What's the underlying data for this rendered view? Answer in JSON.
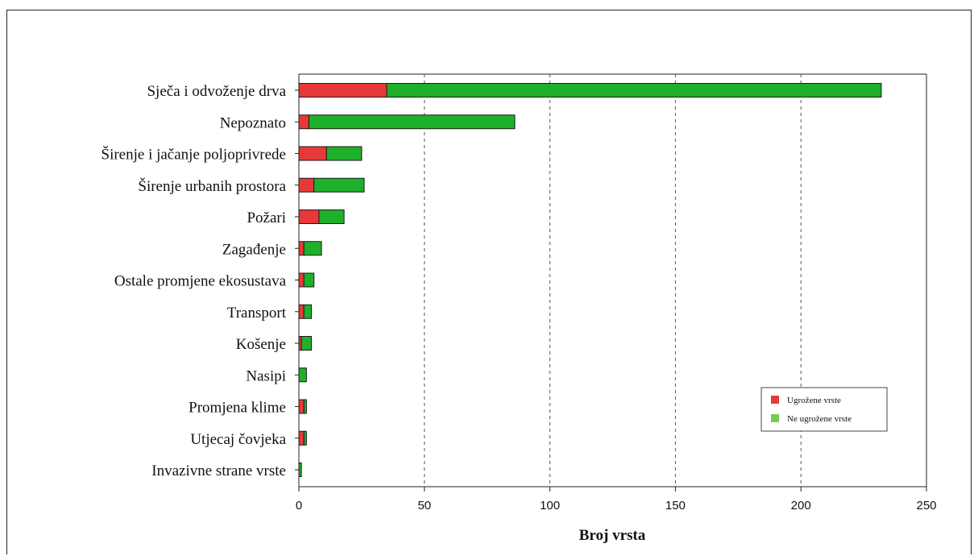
{
  "chart_data": {
    "type": "bar",
    "orientation": "horizontal",
    "stacked": true,
    "title": "",
    "xlabel": "Broj vrsta",
    "ylabel": "",
    "xlim": [
      0,
      250
    ],
    "xticks": [
      0,
      50,
      100,
      150,
      200,
      250
    ],
    "grid": "vertical dashed",
    "legend_position": "bottom-right",
    "categories": [
      "Sječa i odvoženje drva",
      "Nepoznato",
      "Širenje i jačanje poljoprivrede",
      "Širenje urbanih prostora",
      "Požari",
      "Zagađenje",
      "Ostale promjene ekosustava",
      "Transport",
      "Košenje",
      "Nasipi",
      "Promjena klime",
      "Utjecaj čovjeka",
      "Invazivne strane vrste"
    ],
    "series": [
      {
        "name": "Ugrožene vrste",
        "color": "#e8393a",
        "values": [
          35,
          4,
          11,
          6,
          8,
          2,
          2,
          2,
          1,
          0,
          2,
          2,
          0
        ]
      },
      {
        "name": "Ne ugrožene vrste",
        "color": "#1fb02a",
        "values": [
          197,
          82,
          14,
          20,
          10,
          7,
          4,
          3,
          4,
          3,
          1,
          1,
          1
        ]
      }
    ]
  }
}
